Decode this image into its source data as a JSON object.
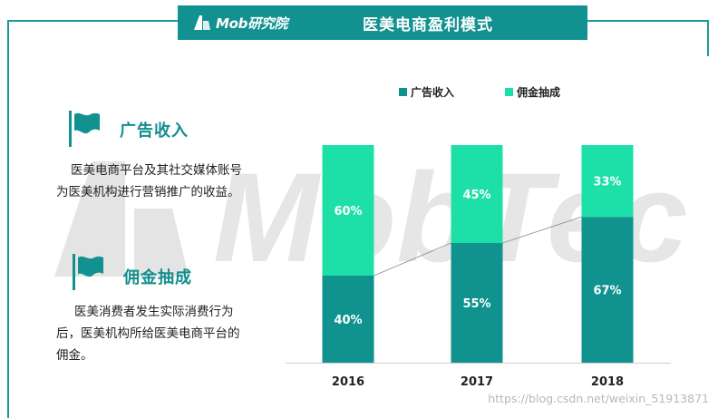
{
  "header": {
    "logo_text": "Mob研究院",
    "title": "医美电商盈利模式"
  },
  "watermark": "MobTech",
  "sections": [
    {
      "title": "广告收入",
      "desc_lines": [
        "医美电商平台及其社交媒体账号",
        "为医美机构进行营销推广的收益。"
      ]
    },
    {
      "title": "佣金抽成",
      "desc_lines": [
        "医美消费者发生实际消费行为",
        "后，医美机构所给医美电商平台的",
        "佣金。"
      ]
    }
  ],
  "colors": {
    "brand": "#11918f",
    "ad_revenue": "#10928f",
    "commission": "#1de0a8",
    "title_text": "#128f8d"
  },
  "footer": {
    "url": "https://blog.csdn.net/weixin_51913871"
  },
  "chart_data": {
    "type": "bar",
    "stacked": true,
    "categories": [
      "2016",
      "2017",
      "2018"
    ],
    "series": [
      {
        "name": "广告收入",
        "values": [
          40,
          55,
          67
        ],
        "labels": [
          "40%",
          "55%",
          "67%"
        ],
        "color": "#10928f"
      },
      {
        "name": "佣金抽成",
        "values": [
          60,
          45,
          33
        ],
        "labels": [
          "60%",
          "45%",
          "33%"
        ],
        "color": "#1de0a8"
      }
    ],
    "ylim": [
      0,
      100
    ],
    "legend_position": "top",
    "grid": false,
    "trend_line": true
  }
}
